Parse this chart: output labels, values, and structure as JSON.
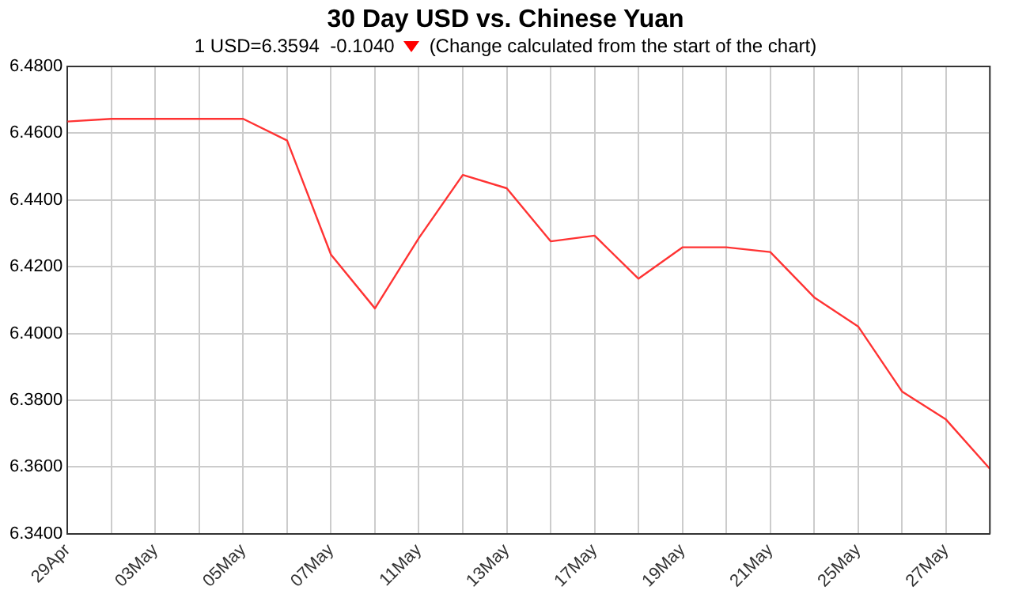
{
  "chart_data": {
    "type": "line",
    "title": "30 Day USD vs. Chinese Yuan",
    "subtitle": "1 USD=6.3594  -0.1040",
    "annotations": [
      "(Change calculated from the start of the chart)"
    ],
    "categories": [
      "29Apr",
      null,
      "03May",
      null,
      "05May",
      null,
      "07May",
      null,
      "11May",
      null,
      "13May",
      null,
      "17May",
      null,
      "19May",
      null,
      "21May",
      null,
      "25May",
      null,
      "27May",
      null
    ],
    "series": [
      {
        "color": "#ff3333",
        "values": [
          6.4635,
          6.4643,
          6.4643,
          6.4643,
          6.4643,
          6.4578,
          6.4236,
          6.4075,
          6.4286,
          6.4475,
          6.4435,
          6.4276,
          6.4293,
          6.4164,
          6.4258,
          6.4258,
          6.4244,
          6.4108,
          6.4021,
          6.3826,
          6.3742,
          6.3594
        ]
      }
    ],
    "ylim": [
      6.34,
      6.48
    ],
    "yticks": [
      {
        "value": 6.34,
        "label": "6.3400"
      },
      {
        "value": 6.36,
        "label": "6.3600"
      },
      {
        "value": 6.38,
        "label": "6.3800"
      },
      {
        "value": 6.4,
        "label": "6.4000"
      },
      {
        "value": 6.42,
        "label": "6.4200"
      },
      {
        "value": 6.44,
        "label": "6.4400"
      },
      {
        "value": 6.46,
        "label": "6.4600"
      },
      {
        "value": 6.48,
        "label": "6.4800"
      }
    ],
    "grid": true,
    "legend": false,
    "marker": "none",
    "line_style": "solid"
  }
}
